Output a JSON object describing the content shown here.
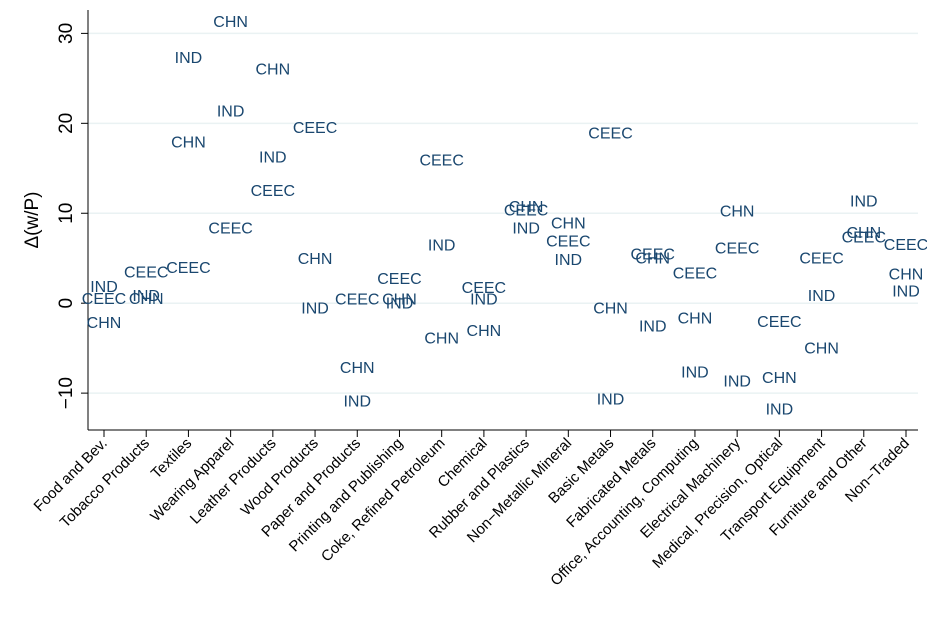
{
  "chart_data": {
    "type": "scatter",
    "ylabel": "Δ(w/P)",
    "categories": [
      "Food and Bev.",
      "Tobacco Products",
      "Textiles",
      "Wearing Apparel",
      "Leather Products",
      "Wood Products",
      "Paper and Products",
      "Printing and Publishing",
      "Coke, Refined Petroleum",
      "Chemical",
      "Rubber and Plastics",
      "Non−Metallic Mineral",
      "Basic Metals",
      "Fabricated Metals",
      "Office, Accounting, Computing",
      "Electrical Machinery",
      "Medical, Precision, Optical",
      "Transport Equipment",
      "Furniture and Other",
      "Non−Traded"
    ],
    "series": [
      {
        "name": "CHN",
        "color": "#1a476f",
        "values": [
          -2.3,
          0.4,
          17.8,
          31.2,
          25.9,
          4.8,
          -7.3,
          0.3,
          -4,
          -3.2,
          10.6,
          8.8,
          -0.7,
          4.9,
          -1.8,
          10.1,
          -8.4,
          -5.1,
          7.7,
          3.1
        ]
      },
      {
        "name": "IND",
        "color": "#1a476f",
        "values": [
          1.7,
          0.7,
          27.2,
          21.2,
          16.1,
          -0.7,
          -11,
          -0.1,
          6.3,
          0.3,
          8.2,
          4.7,
          -10.8,
          -2.7,
          -7.8,
          -8.8,
          -11.9,
          0.7,
          11.2,
          1.2
        ]
      },
      {
        "name": "CEEC",
        "color": "#1a476f",
        "values": [
          0.4,
          3.3,
          3.8,
          8.2,
          12.4,
          19.4,
          0.3,
          2.6,
          15.8,
          1.6,
          10.2,
          6.8,
          18.8,
          5.3,
          3.2,
          6,
          -2.2,
          4.9,
          7.2,
          6.4
        ]
      }
    ],
    "ylim": [
      -14.1,
      32.6
    ],
    "yticks": [
      {
        "value": -10,
        "label": "−10"
      },
      0,
      10,
      20,
      30
    ],
    "grid": true
  }
}
